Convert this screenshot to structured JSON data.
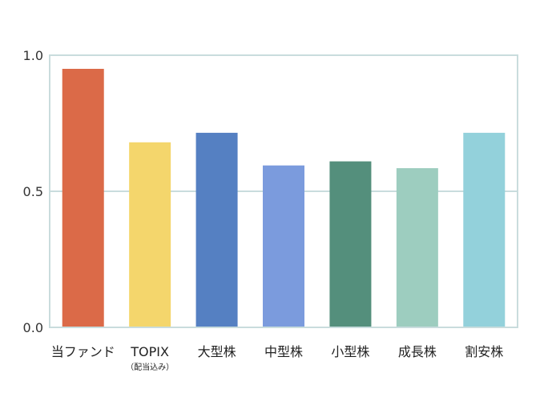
{
  "chart_data": {
    "type": "bar",
    "categories": [
      "当ファンド",
      "TOPIX",
      "大型株",
      "中型株",
      "小型株",
      "成長株",
      "割安株"
    ],
    "category_sublabels": [
      "",
      "（配当込み）",
      "",
      "",
      "",
      "",
      ""
    ],
    "values": [
      0.95,
      0.68,
      0.715,
      0.595,
      0.61,
      0.585,
      0.715
    ],
    "colors": [
      "#db6a48",
      "#f4d66c",
      "#5580c2",
      "#7b9bdd",
      "#548f7c",
      "#9dcdbf",
      "#93d1db"
    ],
    "ylim": [
      0,
      1.0
    ],
    "yticks": [
      0.0,
      0.5,
      1.0
    ],
    "ytick_labels": [
      "0.0",
      "0.5",
      "1.0"
    ],
    "grid": true,
    "grid_color": "#c9dcdd",
    "frame_color": "#c9dcdd",
    "title": "",
    "xlabel": "",
    "ylabel": ""
  }
}
